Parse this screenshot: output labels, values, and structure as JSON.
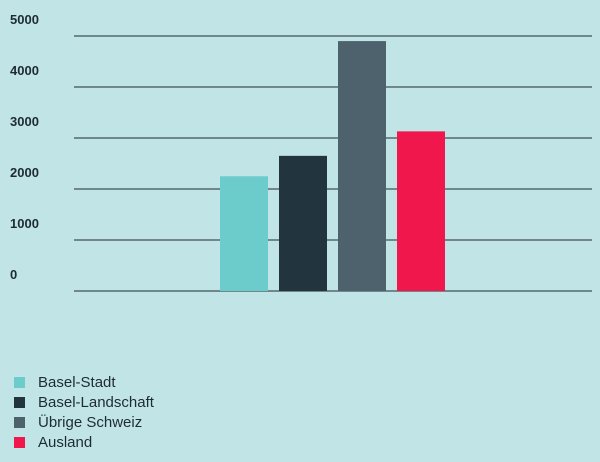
{
  "chart_data": {
    "type": "bar",
    "series": [
      {
        "name": "Basel-Stadt",
        "value": 2250,
        "color": "#6ccccc"
      },
      {
        "name": "Basel-Landschaft",
        "value": 2650,
        "color": "#22353f"
      },
      {
        "name": "Übrige Schweiz",
        "value": 4900,
        "color": "#4e626e"
      },
      {
        "name": "Ausland",
        "value": 3130,
        "color": "#ef174c"
      }
    ],
    "ylim": [
      0,
      5000
    ],
    "yticks": [
      "5000",
      "4000",
      "3000",
      "2000",
      "1000",
      "0"
    ],
    "grid": true,
    "legend_position": "bottom-left"
  }
}
